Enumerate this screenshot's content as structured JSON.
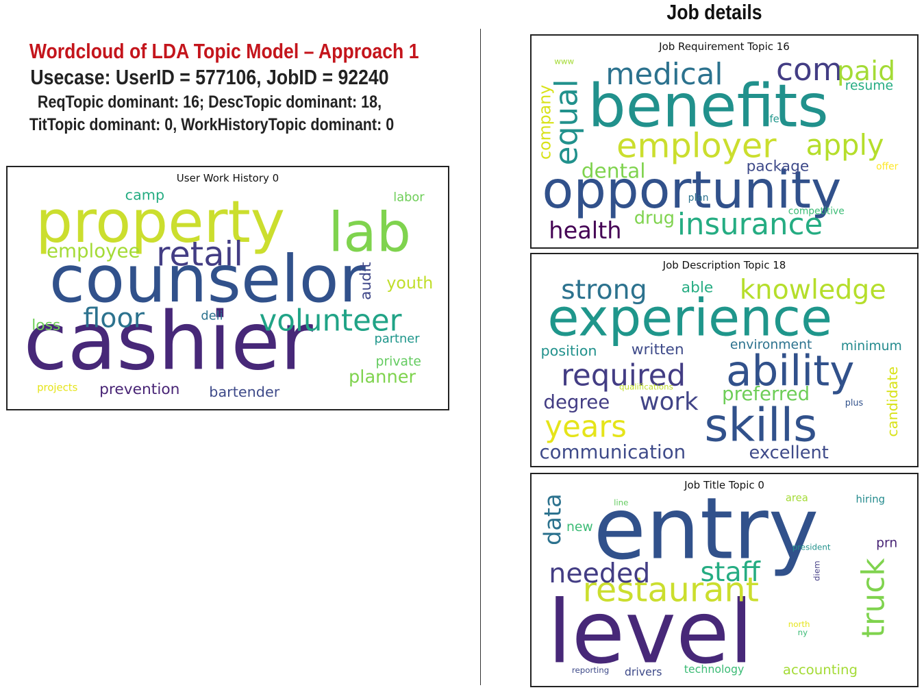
{
  "header": {
    "title": "Wordcloud of LDA Topic Model – Approach 1",
    "usecase": "Usecase: UserID = 577106, JobID = 92240",
    "req_desc": "ReqTopic dominant: 16; DescTopic dominant: 18,",
    "tit_work": "TitTopic dominant: 0, WorkHistoryTopic dominant: 0",
    "title_color": "#c4151c"
  },
  "right_header": {
    "title": "Job details"
  },
  "clouds": {
    "work_history": {
      "title": "User Work History 0",
      "words": [
        {
          "text": "cashier",
          "size": 118,
          "color": "#472878"
        },
        {
          "text": "counselor",
          "size": 96,
          "color": "#31518b"
        },
        {
          "text": "property",
          "size": 86,
          "color": "#cbde2e"
        },
        {
          "text": "lab",
          "size": 80,
          "color": "#7fd34e"
        },
        {
          "text": "retail",
          "size": 50,
          "color": "#433d84"
        },
        {
          "text": "volunteer",
          "size": 44,
          "color": "#20a386"
        },
        {
          "text": "floor",
          "size": 40,
          "color": "#2c728e"
        },
        {
          "text": "employee",
          "size": 28,
          "color": "#a4db36"
        },
        {
          "text": "youth",
          "size": 24,
          "color": "#c0de2a"
        },
        {
          "text": "audit",
          "size": 22,
          "color": "#3f4788",
          "rotate": true
        },
        {
          "text": "loss",
          "size": 22,
          "color": "#6ece58"
        },
        {
          "text": "planner",
          "size": 26,
          "color": "#7fd34e"
        },
        {
          "text": "camp",
          "size": 21,
          "color": "#25ac82"
        },
        {
          "text": "labor",
          "size": 18,
          "color": "#6ece58"
        },
        {
          "text": "deli",
          "size": 18,
          "color": "#2c728e"
        },
        {
          "text": "partner",
          "size": 18,
          "color": "#1f968b"
        },
        {
          "text": "private",
          "size": 19,
          "color": "#63cb5f"
        },
        {
          "text": "prevention",
          "size": 22,
          "color": "#482475"
        },
        {
          "text": "bartender",
          "size": 21,
          "color": "#3e4a89"
        },
        {
          "text": "projects",
          "size": 15,
          "color": "#e5e419"
        }
      ]
    },
    "requirement": {
      "title": "Job Requirement Topic 16",
      "words": [
        {
          "text": "benefits",
          "size": 88,
          "color": "#21918c"
        },
        {
          "text": "opportunity",
          "size": 76,
          "color": "#31518b"
        },
        {
          "text": "employer",
          "size": 50,
          "color": "#cbde2e"
        },
        {
          "text": "medical",
          "size": 44,
          "color": "#2c728e"
        },
        {
          "text": "com",
          "size": 46,
          "color": "#433d84"
        },
        {
          "text": "paid",
          "size": 40,
          "color": "#a4db36"
        },
        {
          "text": "equal",
          "size": 46,
          "color": "#21918c",
          "rotate": true
        },
        {
          "text": "apply",
          "size": 42,
          "color": "#b5de2b"
        },
        {
          "text": "insurance",
          "size": 44,
          "color": "#25ac82"
        },
        {
          "text": "health",
          "size": 34,
          "color": "#440154"
        },
        {
          "text": "dental",
          "size": 30,
          "color": "#7fd34e"
        },
        {
          "text": "company",
          "size": 24,
          "color": "#d8e219",
          "rotate": true
        },
        {
          "text": "package",
          "size": 22,
          "color": "#3e4a89"
        },
        {
          "text": "drug",
          "size": 26,
          "color": "#7fd34e"
        },
        {
          "text": "resume",
          "size": 19,
          "color": "#25ac82"
        },
        {
          "text": "life",
          "size": 15,
          "color": "#1f968b"
        },
        {
          "text": "plan",
          "size": 14,
          "color": "#2c728e"
        },
        {
          "text": "competitive",
          "size": 14,
          "color": "#3bbb75"
        },
        {
          "text": "offer",
          "size": 14,
          "color": "#fde725"
        },
        {
          "text": "www",
          "size": 12,
          "color": "#a4db36"
        }
      ]
    },
    "description": {
      "title": "Job Description Topic 18",
      "words": [
        {
          "text": "experience",
          "size": 76,
          "color": "#1f968b"
        },
        {
          "text": "skills",
          "size": 68,
          "color": "#31518b"
        },
        {
          "text": "ability",
          "size": 62,
          "color": "#31518b"
        },
        {
          "text": "required",
          "size": 44,
          "color": "#433d84"
        },
        {
          "text": "years",
          "size": 44,
          "color": "#e5e419"
        },
        {
          "text": "knowledge",
          "size": 40,
          "color": "#b5de2b"
        },
        {
          "text": "strong",
          "size": 40,
          "color": "#2c728e"
        },
        {
          "text": "work",
          "size": 36,
          "color": "#414487"
        },
        {
          "text": "communication",
          "size": 28,
          "color": "#3e4a89"
        },
        {
          "text": "preferred",
          "size": 28,
          "color": "#6ece58"
        },
        {
          "text": "degree",
          "size": 28,
          "color": "#433d84"
        },
        {
          "text": "excellent",
          "size": 26,
          "color": "#3e4a89"
        },
        {
          "text": "written",
          "size": 22,
          "color": "#3e4a89"
        },
        {
          "text": "able",
          "size": 22,
          "color": "#25ac82"
        },
        {
          "text": "position",
          "size": 21,
          "color": "#21918c"
        },
        {
          "text": "environment",
          "size": 19,
          "color": "#2c728e"
        },
        {
          "text": "minimum",
          "size": 19,
          "color": "#238a8d"
        },
        {
          "text": "candidate",
          "size": 21,
          "color": "#d8e219",
          "rotate": true
        },
        {
          "text": "qualifications",
          "size": 12,
          "color": "#c0de2a"
        },
        {
          "text": "plus",
          "size": 13,
          "color": "#31518b"
        }
      ]
    },
    "title_topic": {
      "title": "Job Title Topic 0",
      "words": [
        {
          "text": "entry",
          "size": 126,
          "color": "#31518b"
        },
        {
          "text": "level",
          "size": 128,
          "color": "#472878"
        },
        {
          "text": "restaurant",
          "size": 50,
          "color": "#cbde2e"
        },
        {
          "text": "needed",
          "size": 40,
          "color": "#433d84"
        },
        {
          "text": "staff",
          "size": 40,
          "color": "#25ac82"
        },
        {
          "text": "truck",
          "size": 46,
          "color": "#7fd34e",
          "rotate": true
        },
        {
          "text": "data",
          "size": 34,
          "color": "#2c728e",
          "rotate": true
        },
        {
          "text": "new",
          "size": 19,
          "color": "#3bbb75"
        },
        {
          "text": "prn",
          "size": 19,
          "color": "#482475"
        },
        {
          "text": "area",
          "size": 15,
          "color": "#a4db36"
        },
        {
          "text": "hiring",
          "size": 15,
          "color": "#238a8d"
        },
        {
          "text": "line",
          "size": 12,
          "color": "#63cb5f"
        },
        {
          "text": "president",
          "size": 12,
          "color": "#21918c"
        },
        {
          "text": "diem",
          "size": 12,
          "color": "#433d84",
          "rotate": true
        },
        {
          "text": "north",
          "size": 12,
          "color": "#e5e419"
        },
        {
          "text": "ny",
          "size": 12,
          "color": "#3bbb75"
        },
        {
          "text": "reporting",
          "size": 12,
          "color": "#3e4a89"
        },
        {
          "text": "drivers",
          "size": 16,
          "color": "#3e4a89"
        },
        {
          "text": "technology",
          "size": 16,
          "color": "#3bbb75"
        },
        {
          "text": "accounting",
          "size": 20,
          "color": "#a4db36"
        }
      ]
    }
  }
}
